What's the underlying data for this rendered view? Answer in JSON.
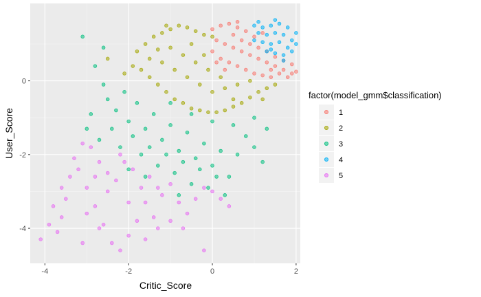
{
  "chart_data": {
    "type": "scatter",
    "xlabel": "Critic_Score",
    "ylabel": "User_Score",
    "xlim": [
      -4.35,
      2.1
    ],
    "ylim": [
      -4.95,
      2.1
    ],
    "x_ticks": [
      -4,
      -2,
      0,
      2
    ],
    "y_ticks": [
      -4,
      -2,
      0
    ],
    "x_tick_labels": [
      "-4",
      "-2",
      "0",
      "2"
    ],
    "y_tick_labels": [
      "-4",
      "-2",
      "0"
    ],
    "grid": true,
    "legend": {
      "title": "factor(model_gmm$classification)",
      "placement": "right",
      "entries": [
        "1",
        "2",
        "3",
        "4",
        "5"
      ]
    },
    "series": [
      {
        "name": "1",
        "color": "#F8766D",
        "values": [
          [
            0.0,
            1.4
          ],
          [
            0.2,
            1.5
          ],
          [
            0.4,
            1.55
          ],
          [
            0.6,
            1.45
          ],
          [
            0.8,
            1.35
          ],
          [
            1.0,
            1.2
          ],
          [
            0.1,
            1.1
          ],
          [
            0.3,
            1.0
          ],
          [
            0.5,
            0.9
          ],
          [
            0.7,
            0.8
          ],
          [
            0.9,
            0.7
          ],
          [
            1.1,
            0.6
          ],
          [
            1.3,
            0.5
          ],
          [
            1.5,
            0.4
          ],
          [
            1.7,
            0.3
          ],
          [
            1.9,
            0.2
          ],
          [
            0.2,
            0.6
          ],
          [
            0.4,
            0.5
          ],
          [
            0.6,
            0.4
          ],
          [
            0.8,
            0.3
          ],
          [
            1.0,
            0.2
          ],
          [
            1.2,
            0.15
          ],
          [
            1.4,
            0.1
          ],
          [
            0.5,
            1.25
          ],
          [
            0.7,
            1.1
          ],
          [
            0.9,
            1.0
          ],
          [
            1.1,
            0.9
          ],
          [
            1.3,
            0.8
          ],
          [
            1.5,
            0.65
          ],
          [
            1.7,
            0.55
          ],
          [
            1.9,
            0.45
          ],
          [
            2.0,
            0.25
          ],
          [
            1.6,
            0.2
          ],
          [
            1.8,
            0.1
          ],
          [
            0.0,
            0.8
          ],
          [
            0.1,
            0.5
          ],
          [
            0.3,
            0.3
          ],
          [
            1.2,
            1.3
          ],
          [
            1.4,
            0.3
          ],
          [
            0.6,
            1.6
          ]
        ]
      },
      {
        "name": "2",
        "color": "#A3A500",
        "values": [
          [
            -1.8,
            0.8
          ],
          [
            -1.6,
            1.0
          ],
          [
            -1.4,
            1.2
          ],
          [
            -1.2,
            1.3
          ],
          [
            -1.0,
            1.4
          ],
          [
            -0.8,
            1.5
          ],
          [
            -0.6,
            1.45
          ],
          [
            -0.4,
            1.35
          ],
          [
            -0.2,
            1.25
          ],
          [
            0.0,
            1.2
          ],
          [
            -1.9,
            0.4
          ],
          [
            -1.7,
            0.3
          ],
          [
            -1.5,
            0.1
          ],
          [
            -1.3,
            -0.1
          ],
          [
            -1.1,
            -0.3
          ],
          [
            -0.9,
            -0.5
          ],
          [
            -0.7,
            -0.6
          ],
          [
            -0.5,
            -0.75
          ],
          [
            -0.3,
            -0.8
          ],
          [
            -0.1,
            -0.85
          ],
          [
            0.1,
            -0.85
          ],
          [
            0.3,
            -0.8
          ],
          [
            0.5,
            -0.7
          ],
          [
            0.7,
            -0.6
          ],
          [
            0.9,
            -0.45
          ],
          [
            1.1,
            -0.3
          ],
          [
            1.3,
            -0.2
          ],
          [
            1.5,
            -0.1
          ],
          [
            -1.5,
            0.6
          ],
          [
            -1.2,
            0.5
          ],
          [
            -0.9,
            0.3
          ],
          [
            -0.6,
            0.1
          ],
          [
            -0.3,
            -0.1
          ],
          [
            0.0,
            -0.3
          ],
          [
            0.3,
            -0.2
          ],
          [
            0.6,
            -0.1
          ],
          [
            -1.0,
            0.9
          ],
          [
            -0.7,
            0.7
          ],
          [
            -0.4,
            0.5
          ],
          [
            -0.1,
            0.3
          ],
          [
            0.2,
            0.1
          ],
          [
            -1.3,
            0.85
          ],
          [
            -0.5,
            1.0
          ],
          [
            -0.2,
            0.7
          ],
          [
            0.9,
            0.0
          ],
          [
            -2.1,
            0.2
          ],
          [
            -2.5,
            0.6
          ],
          [
            -1.1,
            1.5
          ],
          [
            1.2,
            -0.5
          ],
          [
            0.5,
            -0.5
          ]
        ]
      },
      {
        "name": "3",
        "color": "#00BF7D",
        "values": [
          [
            -3.1,
            1.2
          ],
          [
            -2.8,
            0.4
          ],
          [
            -2.6,
            -0.1
          ],
          [
            -2.9,
            -0.9
          ],
          [
            -2.5,
            -0.5
          ],
          [
            -2.3,
            -0.8
          ],
          [
            -2.1,
            -0.3
          ],
          [
            -2.0,
            -1.1
          ],
          [
            -1.8,
            -0.6
          ],
          [
            -1.6,
            -1.3
          ],
          [
            -1.4,
            -0.9
          ],
          [
            -1.2,
            -1.6
          ],
          [
            -1.0,
            -1.2
          ],
          [
            -0.8,
            -1.9
          ],
          [
            -0.6,
            -1.4
          ],
          [
            -0.4,
            -2.1
          ],
          [
            -0.2,
            -1.7
          ],
          [
            0.0,
            -2.3
          ],
          [
            0.2,
            -1.9
          ],
          [
            0.4,
            -2.6
          ],
          [
            0.6,
            -2.0
          ],
          [
            0.8,
            -1.5
          ],
          [
            1.0,
            -1.8
          ],
          [
            1.3,
            -1.3
          ],
          [
            -3.0,
            -1.3
          ],
          [
            -2.7,
            -1.6
          ],
          [
            -2.4,
            -1.3
          ],
          [
            -2.2,
            -1.8
          ],
          [
            -1.9,
            -1.5
          ],
          [
            -1.7,
            -2.0
          ],
          [
            -1.5,
            -1.8
          ],
          [
            -1.3,
            -2.3
          ],
          [
            -1.1,
            -2.0
          ],
          [
            -0.9,
            -2.5
          ],
          [
            -0.7,
            -2.2
          ],
          [
            -0.5,
            -2.8
          ],
          [
            -0.3,
            -2.4
          ],
          [
            -0.1,
            -2.9
          ],
          [
            0.1,
            -2.6
          ],
          [
            0.3,
            -3.1
          ],
          [
            -1.0,
            -0.6
          ],
          [
            -0.5,
            -0.9
          ],
          [
            0.0,
            -1.1
          ],
          [
            0.5,
            -1.2
          ],
          [
            1.0,
            -1.0
          ],
          [
            -2.0,
            -2.4
          ],
          [
            -1.6,
            -2.6
          ],
          [
            -0.8,
            -3.1
          ],
          [
            -2.6,
            0.9
          ],
          [
            1.2,
            -2.2
          ]
        ]
      },
      {
        "name": "4",
        "color": "#00B0F6",
        "values": [
          [
            1.0,
            1.5
          ],
          [
            1.2,
            1.45
          ],
          [
            1.4,
            1.5
          ],
          [
            1.6,
            1.55
          ],
          [
            1.8,
            1.45
          ],
          [
            2.0,
            1.3
          ],
          [
            1.1,
            1.3
          ],
          [
            1.3,
            1.25
          ],
          [
            1.5,
            1.3
          ],
          [
            1.7,
            1.25
          ],
          [
            1.9,
            1.1
          ],
          [
            1.0,
            1.1
          ],
          [
            1.2,
            1.05
          ],
          [
            1.4,
            1.0
          ],
          [
            1.6,
            1.05
          ],
          [
            1.8,
            0.9
          ],
          [
            1.3,
            0.8
          ],
          [
            1.5,
            0.75
          ],
          [
            1.7,
            0.7
          ],
          [
            1.9,
            0.8
          ],
          [
            1.1,
            1.6
          ],
          [
            1.5,
            1.65
          ],
          [
            1.7,
            0.55
          ],
          [
            2.0,
            1.0
          ],
          [
            1.4,
            0.85
          ]
        ]
      },
      {
        "name": "5",
        "color": "#E76BF3",
        "values": [
          [
            -4.1,
            -4.3
          ],
          [
            -3.9,
            -3.9
          ],
          [
            -3.7,
            -4.1
          ],
          [
            -3.6,
            -3.7
          ],
          [
            -3.5,
            -3.2
          ],
          [
            -3.4,
            -2.6
          ],
          [
            -3.2,
            -2.4
          ],
          [
            -3.0,
            -2.9
          ],
          [
            -2.8,
            -3.4
          ],
          [
            -2.6,
            -3.9
          ],
          [
            -2.4,
            -4.4
          ],
          [
            -2.2,
            -4.6
          ],
          [
            -2.0,
            -4.2
          ],
          [
            -1.8,
            -3.8
          ],
          [
            -1.6,
            -3.3
          ],
          [
            -1.4,
            -3.7
          ],
          [
            -1.2,
            -3.1
          ],
          [
            -1.0,
            -2.8
          ],
          [
            -0.8,
            -3.3
          ],
          [
            -0.6,
            -3.6
          ],
          [
            -0.4,
            -3.2
          ],
          [
            -0.2,
            -2.9
          ],
          [
            0.0,
            -3.0
          ],
          [
            0.2,
            -3.2
          ],
          [
            0.4,
            -3.4
          ],
          [
            -3.3,
            -2.1
          ],
          [
            -3.1,
            -1.7
          ],
          [
            -2.9,
            -1.8
          ],
          [
            -2.7,
            -2.2
          ],
          [
            -2.5,
            -2.5
          ],
          [
            -2.3,
            -2.7
          ],
          [
            -2.1,
            -2.2
          ],
          [
            -1.9,
            -2.4
          ],
          [
            -1.7,
            -2.9
          ],
          [
            -1.5,
            -2.6
          ],
          [
            -1.3,
            -2.9
          ],
          [
            -2.5,
            -3.0
          ],
          [
            -2.0,
            -3.3
          ],
          [
            -3.6,
            -2.9
          ],
          [
            -3.8,
            -3.4
          ],
          [
            -0.2,
            -4.6
          ],
          [
            -1.3,
            -4.0
          ],
          [
            -2.7,
            -4.0
          ],
          [
            -3.1,
            -4.4
          ],
          [
            -3.0,
            -3.6
          ],
          [
            -1.0,
            -3.8
          ],
          [
            -2.2,
            -2.0
          ],
          [
            -2.8,
            -2.6
          ],
          [
            -1.6,
            -4.3
          ],
          [
            -0.7,
            -4.0
          ]
        ]
      }
    ]
  }
}
